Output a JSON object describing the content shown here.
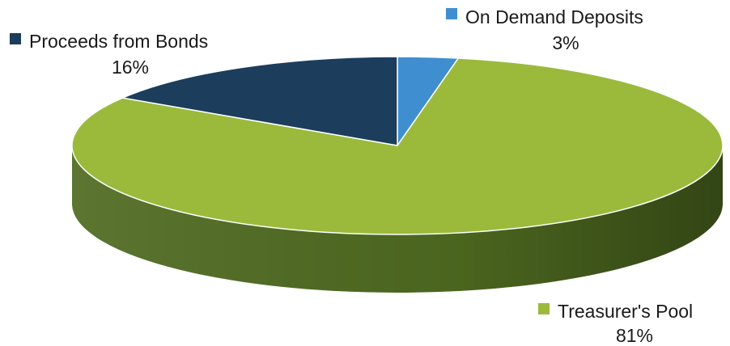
{
  "chart_data": {
    "type": "pie",
    "style": "3d",
    "title": "",
    "slices": [
      {
        "label": "On Demand Deposits",
        "value": 3,
        "value_label": "3%",
        "color": "#3f8fd0"
      },
      {
        "label": "Treasurer's Pool",
        "value": 81,
        "value_label": "81%",
        "color": "#9bba3c"
      },
      {
        "label": "Proceeds from Bonds",
        "value": 16,
        "value_label": "16%",
        "color": "#1c3d5c"
      }
    ],
    "side_colors": {
      "On Demand Deposits": "#2a6aa0",
      "Treasurer's Pool": "#4e6a20",
      "Proceeds from Bonds": "#10263b"
    },
    "legend": "labels-beside-slices"
  }
}
